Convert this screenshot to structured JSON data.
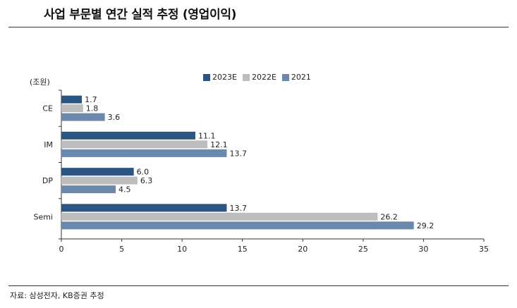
{
  "title": "사업 부문별 연간 실적 추정 (영업이익)",
  "unit_label": "(조원)",
  "source": "자료: 삼성전자, KB증권 추정",
  "chart_data": {
    "type": "bar",
    "orientation": "horizontal",
    "categories": [
      "CE",
      "IM",
      "DP",
      "Semi"
    ],
    "series": [
      {
        "name": "2023E",
        "color": "#2b5684",
        "values": [
          1.7,
          11.1,
          6.0,
          13.7
        ],
        "labels": [
          "1.7",
          "11.1",
          "6.0",
          "13.7"
        ]
      },
      {
        "name": "2022E",
        "color": "#bdbdbd",
        "values": [
          1.8,
          12.1,
          6.3,
          26.2
        ],
        "labels": [
          "1.8",
          "12.1",
          "6.3",
          "26.2"
        ]
      },
      {
        "name": "2021",
        "color": "#6b88ad",
        "values": [
          3.6,
          13.7,
          4.5,
          29.2
        ],
        "labels": [
          "3.6",
          "13.7",
          "4.5",
          "29.2"
        ]
      }
    ],
    "xlim": [
      0,
      35
    ],
    "xticks": [
      0,
      5,
      10,
      15,
      20,
      25,
      30,
      35
    ],
    "legend_position": "top",
    "grid": false
  }
}
